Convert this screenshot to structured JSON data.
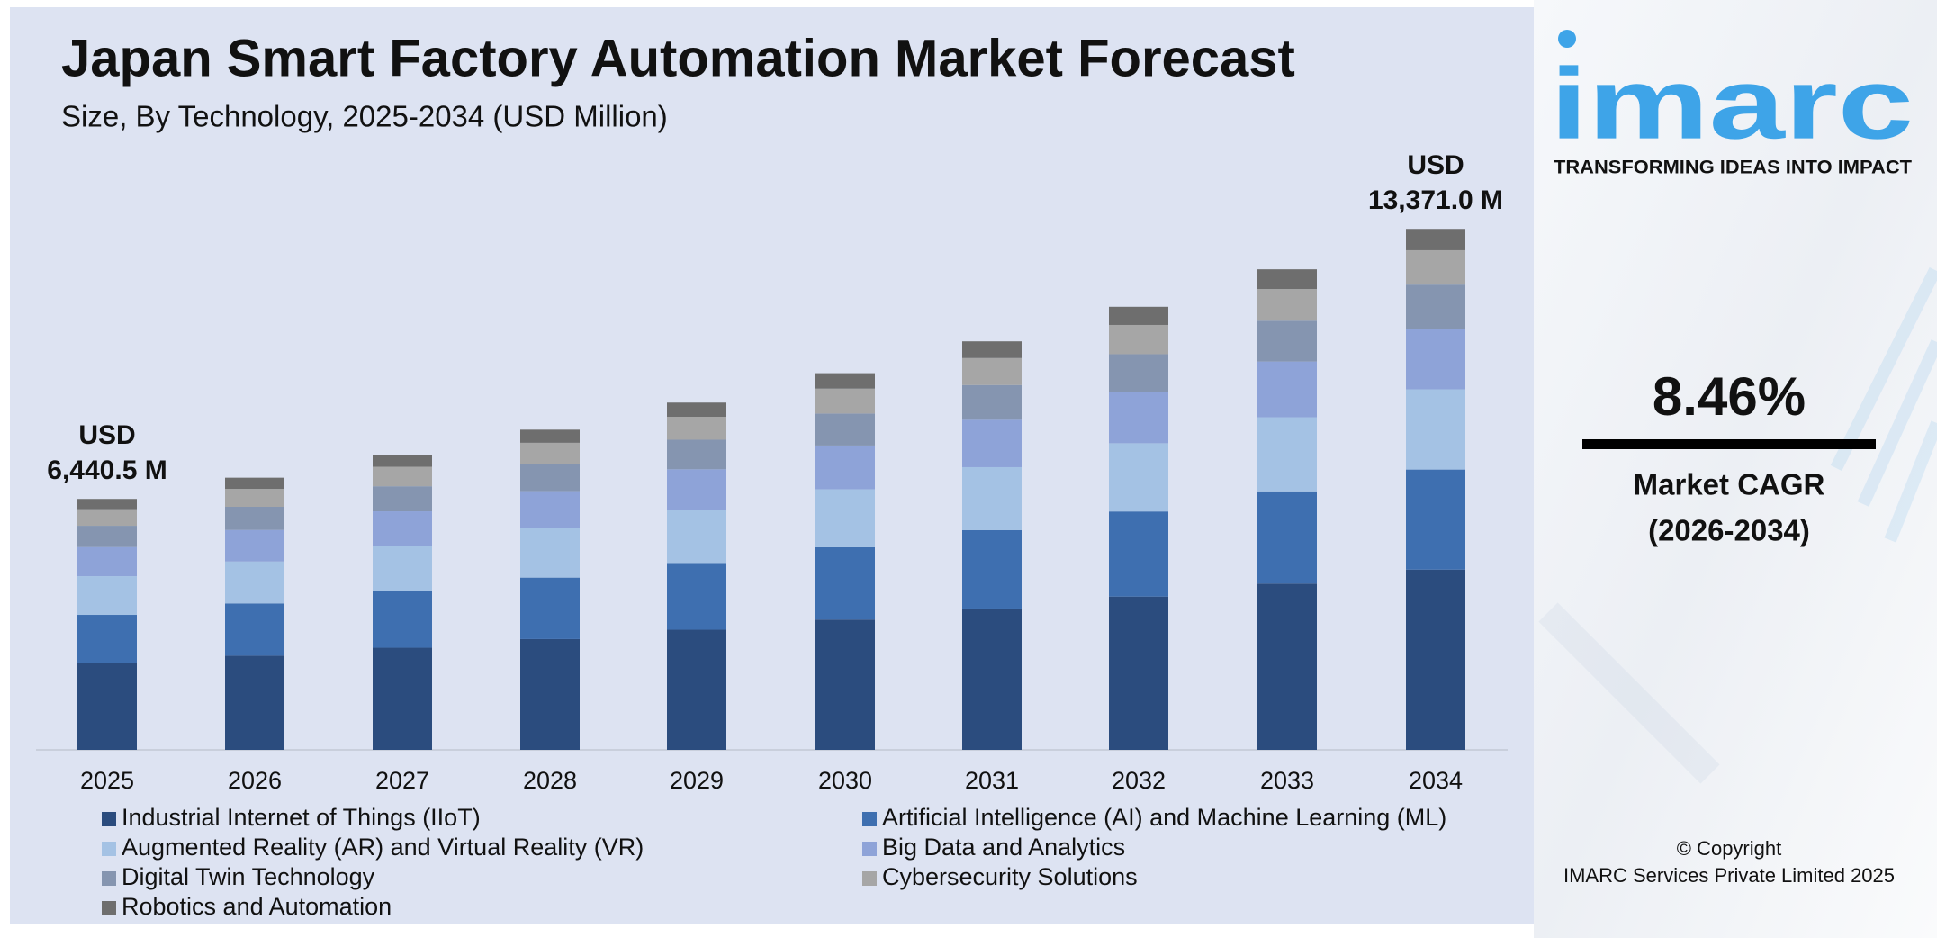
{
  "chart_data": {
    "type": "stacked-bar",
    "title": "Japan Smart Factory Automation Market Forecast",
    "subtitle": "Size, By Technology, 2025-2034 (USD Million)",
    "categories": [
      "2025",
      "2026",
      "2027",
      "2028",
      "2029",
      "2030",
      "2031",
      "2032",
      "2033",
      "2034"
    ],
    "series": [
      {
        "name": "Industrial Internet of Things (IIoT)",
        "color": "#2b4c7e",
        "values": [
          2228.4,
          2416.8,
          2621.3,
          2843.1,
          3083.6,
          3344.4,
          3627.5,
          3934.4,
          4267.2,
          4626.4
        ]
      },
      {
        "name": "Artificial Intelligence (AI) and Machine Learning (ML)",
        "color": "#3e6fb0",
        "values": [
          1236.6,
          1341.1,
          1454.6,
          1577.7,
          1711.1,
          1855.9,
          2012.9,
          2183.2,
          2367.9,
          2567.2
        ]
      },
      {
        "name": "Augmented Reality (AR) and Virtual Reality (VR)",
        "color": "#a4c2e4",
        "values": [
          991.8,
          1075.7,
          1166.7,
          1265.4,
          1372.4,
          1488.6,
          1614.5,
          1751.1,
          1899.3,
          2059.1
        ]
      },
      {
        "name": "Big Data and Analytics",
        "color": "#8ea3d8",
        "values": [
          747.1,
          810.3,
          878.8,
          953.2,
          1033.8,
          1121.3,
          1216.1,
          1319.0,
          1430.6,
          1551.0
        ]
      },
      {
        "name": "Digital Twin Technology",
        "color": "#8595b0",
        "values": [
          547.4,
          593.7,
          644.0,
          698.4,
          757.5,
          821.6,
          891.1,
          966.5,
          1048.3,
          1136.5
        ]
      },
      {
        "name": "Cybersecurity Solutions",
        "color": "#a6a6a6",
        "values": [
          425.1,
          461.0,
          500.0,
          542.3,
          588.2,
          638.0,
          691.9,
          750.5,
          814.0,
          882.5
        ]
      },
      {
        "name": "Robotics and Automation",
        "color": "#6e6e6e",
        "values": [
          264.1,
          286.4,
          310.6,
          336.9,
          365.4,
          396.3,
          429.8,
          466.2,
          505.7,
          548.2
        ]
      }
    ],
    "ylim": [
      0,
      14000
    ],
    "annotations": [
      {
        "category": "2025",
        "value": 6440.5,
        "prefix": "USD",
        "label": "6,440.5 M"
      },
      {
        "category": "2034",
        "value": 13371.0,
        "prefix": "USD",
        "label": "13,371.0 M"
      }
    ]
  },
  "brand": {
    "logo": "imarc",
    "tagline": "TRANSFORMING IDEAS INTO IMPACT"
  },
  "cagr": {
    "value": "8.46%",
    "label": "Market CAGR",
    "period": "(2026-2034)"
  },
  "footer": {
    "copyright": "© Copyright",
    "company": "IMARC Services Private Limited 2025"
  }
}
